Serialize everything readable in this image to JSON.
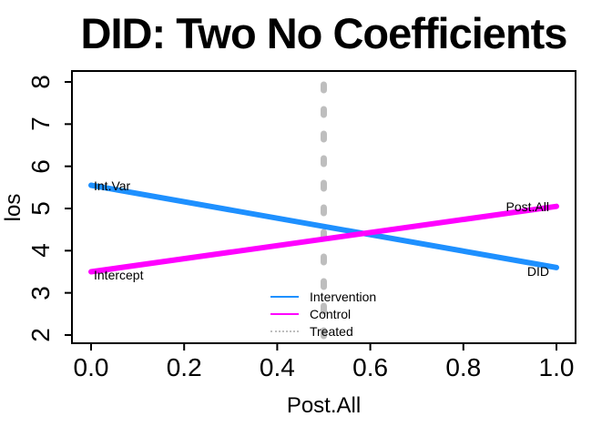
{
  "chart_data": {
    "type": "line",
    "title": "DID: Two No Coefficients",
    "xlabel": "Post.All",
    "ylabel": "los",
    "xlim": [
      0,
      1
    ],
    "ylim": [
      2,
      8
    ],
    "grid": false,
    "x_ticks": [
      {
        "value": 0.0,
        "label": "0.0"
      },
      {
        "value": 0.2,
        "label": "0.2"
      },
      {
        "value": 0.4,
        "label": "0.4"
      },
      {
        "value": 0.6,
        "label": "0.6"
      },
      {
        "value": 0.8,
        "label": "0.8"
      },
      {
        "value": 1.0,
        "label": "1.0"
      }
    ],
    "y_ticks": [
      {
        "value": 2,
        "label": "2"
      },
      {
        "value": 3,
        "label": "3"
      },
      {
        "value": 4,
        "label": "4"
      },
      {
        "value": 5,
        "label": "5"
      },
      {
        "value": 6,
        "label": "6"
      },
      {
        "value": 7,
        "label": "7"
      },
      {
        "value": 8,
        "label": "8"
      }
    ],
    "series": [
      {
        "name": "Intervention",
        "color": "#1E90FF",
        "style": "solid",
        "x": [
          0,
          1
        ],
        "y": [
          5.55,
          3.6
        ]
      },
      {
        "name": "Control",
        "color": "#FF00FF",
        "style": "solid",
        "x": [
          0,
          1
        ],
        "y": [
          3.5,
          5.05
        ]
      }
    ],
    "vline": {
      "name": "Treated",
      "x": 0.5,
      "color": "#BEBEBE",
      "style": "dotted"
    },
    "annotations": [
      {
        "text": "Int.Var",
        "x": 0,
        "y": 5.55,
        "align": "left",
        "dy": 0
      },
      {
        "text": "Intercept",
        "x": 0,
        "y": 3.5,
        "align": "left",
        "dy": 3
      },
      {
        "text": "Post.All",
        "x": 1,
        "y": 5.05,
        "align": "right",
        "dy": 0
      },
      {
        "text": "DID",
        "x": 1,
        "y": 3.6,
        "align": "right",
        "dy": 4
      }
    ],
    "legend": {
      "position": "bottom-center-inside",
      "entries": [
        {
          "label": "Intervention",
          "color": "#1E90FF",
          "line": "solid"
        },
        {
          "label": "Control",
          "color": "#FF00FF",
          "line": "solid"
        },
        {
          "label": "Treated",
          "color": "#BEBEBE",
          "line": "dotted"
        }
      ]
    },
    "colors": {
      "axis": "#000000",
      "background": "#FFFFFF"
    }
  }
}
